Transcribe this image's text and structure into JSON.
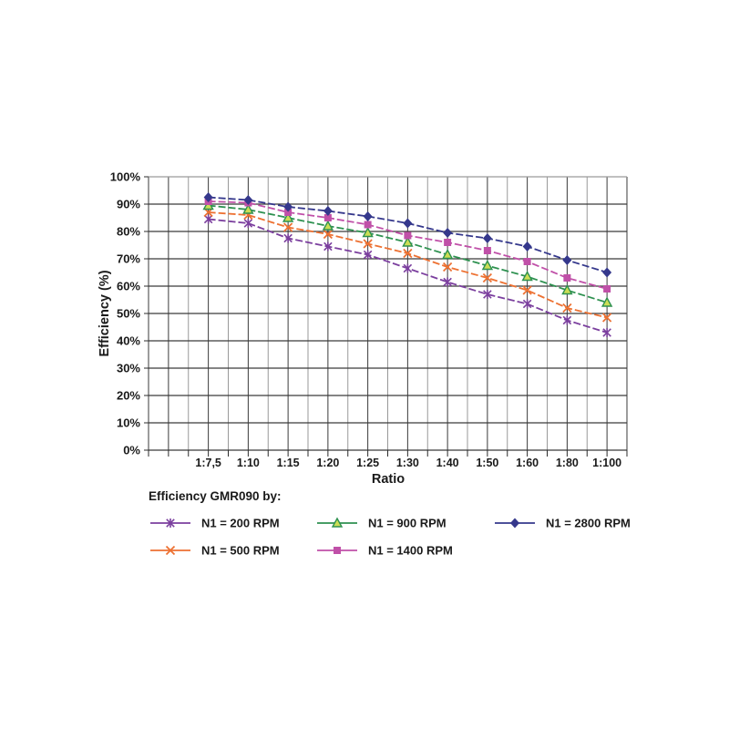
{
  "page": {
    "background": "#ffffff"
  },
  "chart_data": {
    "type": "line",
    "title": "",
    "legend_title": "Efficiency GMR090 by:",
    "xlabel": "Ratio",
    "ylabel": "Efficiency (%)",
    "ylim": [
      0,
      100
    ],
    "ytick_step": 10,
    "y_tick_labels": [
      "0%",
      "10%",
      "20%",
      "30%",
      "40%",
      "50%",
      "60%",
      "70%",
      "80%",
      "90%",
      "100%"
    ],
    "categories": [
      "1:7,5",
      "1:10",
      "1:15",
      "1:20",
      "1:25",
      "1:30",
      "1:40",
      "1:50",
      "1:60",
      "1:80",
      "1:100"
    ],
    "grid": "horizontal major every 10%, vertical lines alternating dark on category columns and light between",
    "legend_position": "bottom",
    "line_style": "dashed",
    "series": [
      {
        "name": "N1 = 200 RPM",
        "color": "#7B3F9E",
        "marker": "star",
        "values": [
          84.5,
          83,
          77.5,
          74.5,
          71.5,
          66.5,
          61.5,
          57,
          53.5,
          47.5,
          43
        ]
      },
      {
        "name": "N1 = 500 RPM",
        "color": "#ED7132",
        "marker": "x",
        "values": [
          87,
          86,
          81.5,
          79,
          75.5,
          72,
          67,
          63,
          58.5,
          52,
          48.5
        ]
      },
      {
        "name": "N1 = 900 RPM",
        "color": "#2E9150",
        "marker": "triangle",
        "marker_fill": "#CCDD55",
        "values": [
          89.5,
          88,
          85,
          82,
          79.5,
          76,
          71.5,
          67.5,
          63.5,
          58.5,
          54
        ]
      },
      {
        "name": "N1 = 1400 RPM",
        "color": "#C050A8",
        "marker": "square",
        "values": [
          91,
          90.5,
          87,
          85,
          82.5,
          78.5,
          76,
          73,
          69,
          63,
          59
        ]
      },
      {
        "name": "N1 = 2800 RPM",
        "color": "#35388C",
        "marker": "diamond",
        "values": [
          92.5,
          91.5,
          89,
          87.5,
          85.5,
          83,
          79.5,
          77.5,
          74.5,
          69.5,
          65
        ]
      }
    ],
    "colors": {
      "grid_major": "#3a3a3a",
      "grid_minor": "#999999",
      "grid_top": "#9a9a9a",
      "axis": "#2b2b2b",
      "text": "#1a1a1a"
    }
  }
}
